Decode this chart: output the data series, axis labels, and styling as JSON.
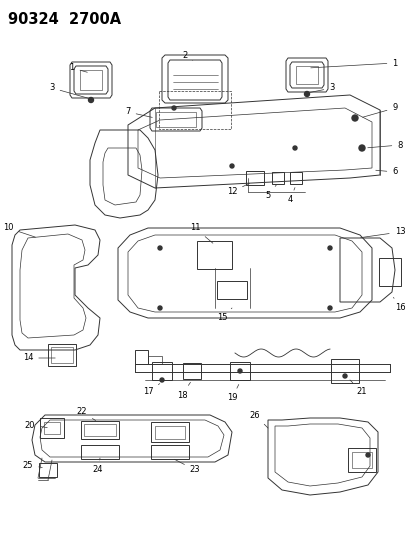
{
  "title": "90324  2700A",
  "bg_color": "#ffffff",
  "fig_width": 4.14,
  "fig_height": 5.33,
  "dpi": 100,
  "line_color": "#333333",
  "label_fontsize": 6.0,
  "title_fontsize": 10.5
}
